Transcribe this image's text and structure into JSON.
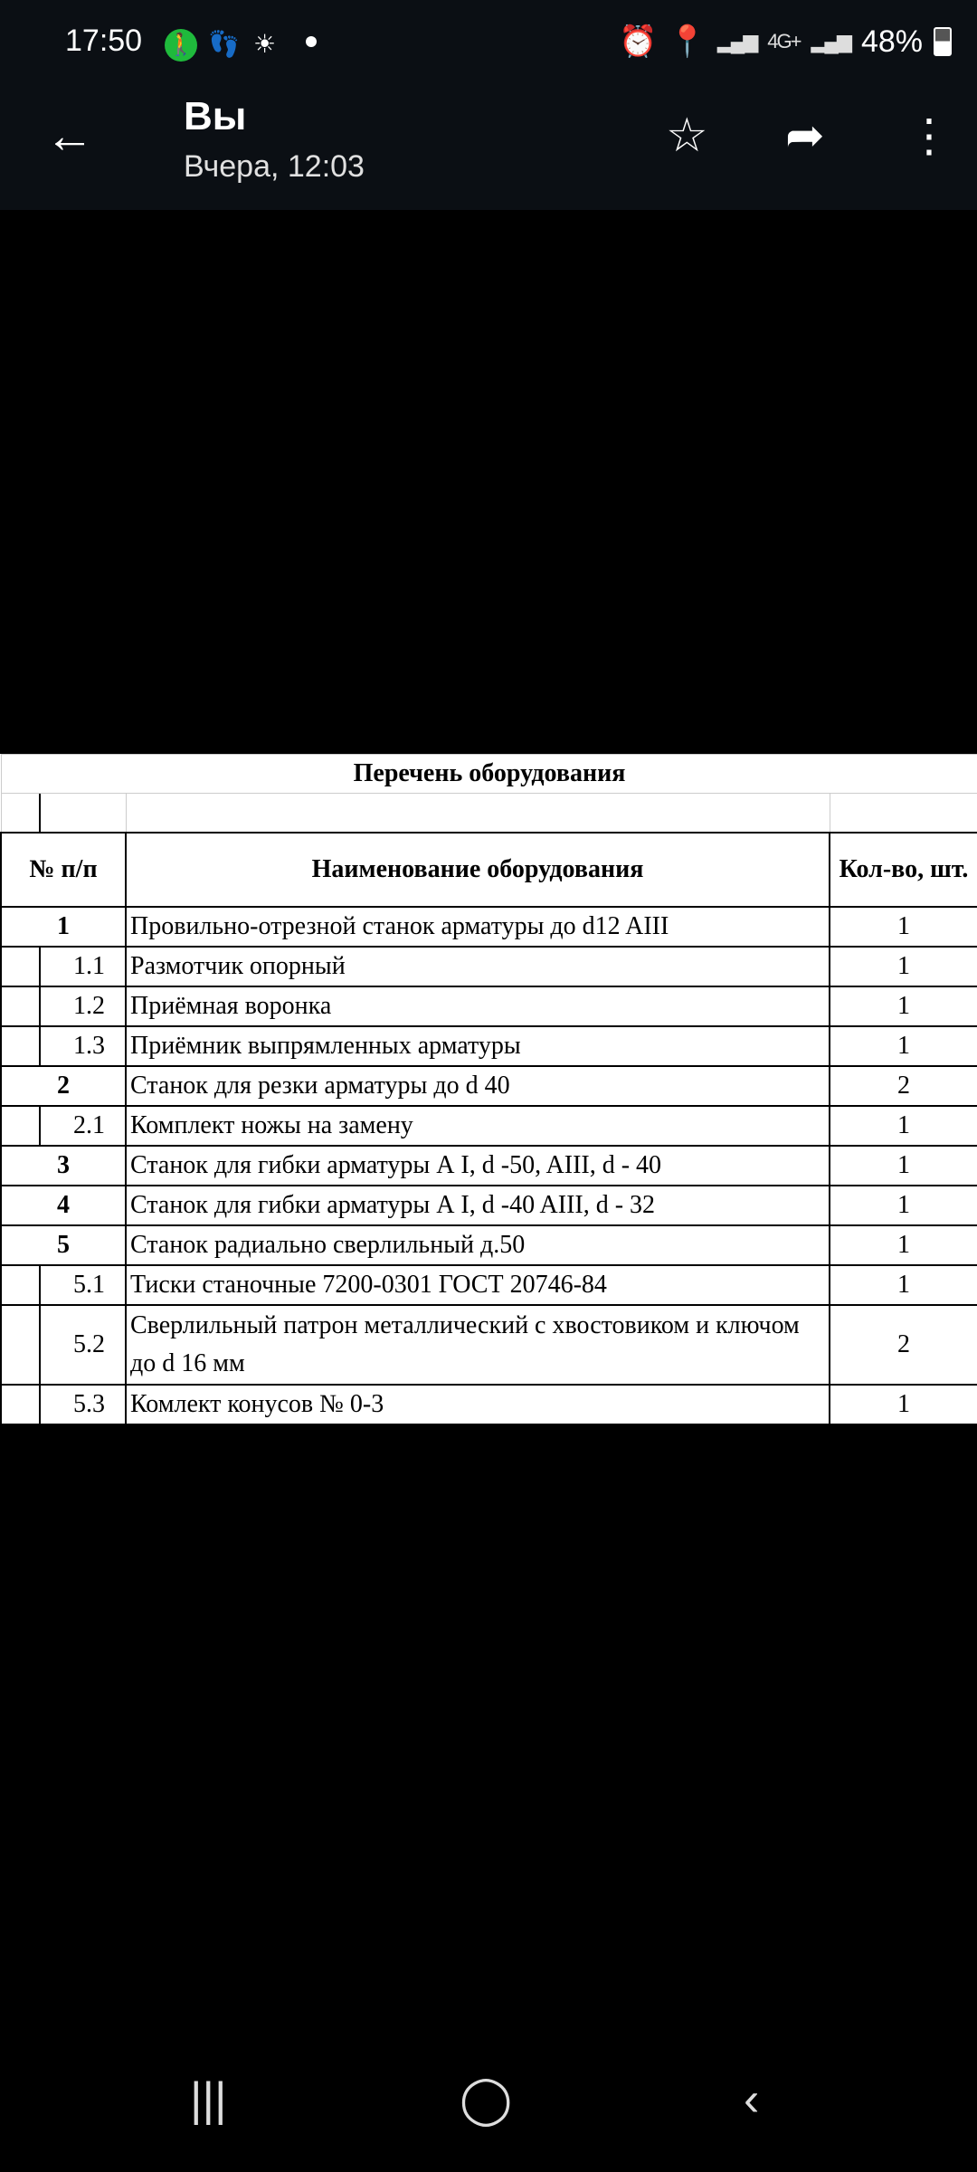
{
  "status_bar": {
    "time": "17:50",
    "battery": "48%",
    "network": "4G+",
    "icons": [
      "walk-icon",
      "footsteps-icon",
      "brightness-icon",
      "notification-dot",
      "alarm-icon",
      "location-icon",
      "signal-icon",
      "signal-icon",
      "battery-icon"
    ],
    "battery_level": 0.48
  },
  "header": {
    "title": "Вы",
    "subtitle": "Вчера, 12:03",
    "icons": [
      "back-arrow-icon",
      "star-icon",
      "share-icon",
      "more-vert-icon"
    ]
  },
  "document": {
    "title": "Перечень оборудования",
    "columns": [
      "№ п/п",
      "Наименование оборудования",
      "Кол-во, шт."
    ],
    "rows": [
      {
        "num": "1",
        "name": "Провильно-отрезной станок арматуры до d12 AIII",
        "qty": "1",
        "level": "main"
      },
      {
        "num": "1.1",
        "name": "Размотчик опорный",
        "qty": "1",
        "level": "sub"
      },
      {
        "num": "1.2",
        "name": "Приёмная воронка",
        "qty": "1",
        "level": "sub"
      },
      {
        "num": "1.3",
        "name": "Приёмник выпрямленных арматуры",
        "qty": "1",
        "level": "sub"
      },
      {
        "num": "2",
        "name": "Станок для резки арматуры до d 40",
        "qty": "2",
        "level": "main"
      },
      {
        "num": "2.1",
        "name": "Комплект ножы на замену",
        "qty": "1",
        "level": "sub"
      },
      {
        "num": "3",
        "name": "Станок для гибки арматуры А I, d -50, AIII, d - 40",
        "qty": "1",
        "level": "main"
      },
      {
        "num": "4",
        "name": "Станок для гибки арматуры А I, d -40 AIII, d - 32",
        "qty": "1",
        "level": "main"
      },
      {
        "num": "5",
        "name": "Станок радиально сверлильный д.50",
        "qty": "1",
        "level": "main"
      },
      {
        "num": "5.1",
        "name": "Тиски станочные 7200-0301 ГОСТ 20746-84",
        "qty": "1",
        "level": "sub"
      },
      {
        "num": "5.2",
        "name": "Сверлильный патрон металлический с хвостовиком и ключом до d 16 мм",
        "qty": "2",
        "level": "sub"
      },
      {
        "num": "5.3",
        "name": "Комлект конусов № 0-3",
        "qty": "1",
        "level": "sub"
      }
    ]
  },
  "nav_bar": {
    "icons": [
      "recent-apps-icon",
      "home-icon",
      "back-icon"
    ]
  }
}
